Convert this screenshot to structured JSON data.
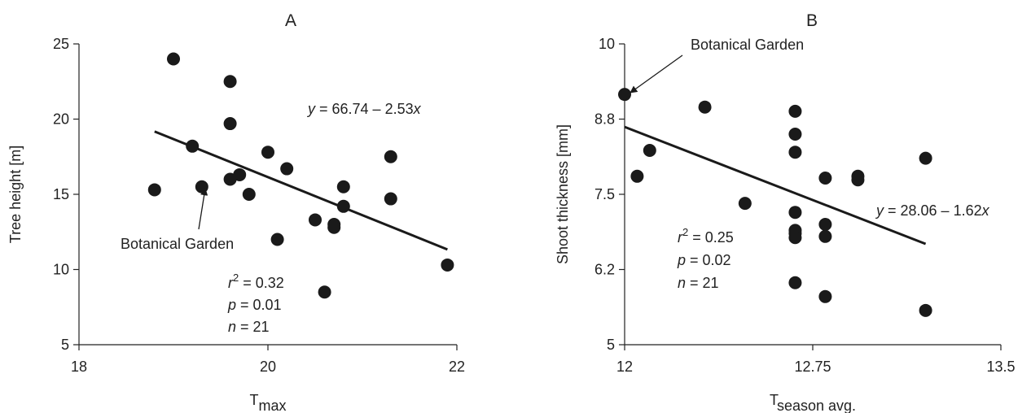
{
  "chart_data": [
    {
      "type": "scatter",
      "title": "A",
      "xlabel": "T",
      "xlabel_sub": "max",
      "ylabel": "Tree height [m]",
      "xlim": [
        18,
        22
      ],
      "ylim": [
        5,
        25
      ],
      "xticks": [
        18,
        20,
        22
      ],
      "yticks": [
        5,
        10,
        15,
        20,
        25
      ],
      "xtick_labels": [
        "18",
        "20",
        "22"
      ],
      "ytick_labels": [
        "5",
        "10",
        "15",
        "20",
        "25"
      ],
      "points": [
        {
          "x": 18.8,
          "y": 15.3
        },
        {
          "x": 19.0,
          "y": 24.0
        },
        {
          "x": 19.2,
          "y": 18.2
        },
        {
          "x": 19.3,
          "y": 15.5
        },
        {
          "x": 19.6,
          "y": 22.5
        },
        {
          "x": 19.6,
          "y": 19.7
        },
        {
          "x": 19.6,
          "y": 16.0
        },
        {
          "x": 19.7,
          "y": 16.3
        },
        {
          "x": 19.8,
          "y": 15.0
        },
        {
          "x": 20.0,
          "y": 17.8
        },
        {
          "x": 20.1,
          "y": 12.0
        },
        {
          "x": 20.2,
          "y": 16.7
        },
        {
          "x": 20.5,
          "y": 13.3
        },
        {
          "x": 20.6,
          "y": 8.5
        },
        {
          "x": 20.7,
          "y": 13.0
        },
        {
          "x": 20.7,
          "y": 12.8
        },
        {
          "x": 20.8,
          "y": 15.5
        },
        {
          "x": 20.8,
          "y": 14.2
        },
        {
          "x": 21.3,
          "y": 17.5
        },
        {
          "x": 21.3,
          "y": 14.7
        },
        {
          "x": 21.9,
          "y": 10.3
        }
      ],
      "regression": {
        "intercept": 66.74,
        "slope": -2.53,
        "x_range": [
          18.8,
          21.9
        ]
      },
      "equation": {
        "prefix": "y",
        "text": " = 66.74 – 2.53",
        "var": "x"
      },
      "stats": [
        {
          "var": "r",
          "sup": "2",
          "text": " = 0.32"
        },
        {
          "var": "p",
          "sup": "",
          "text": " = 0.01"
        },
        {
          "var": "n",
          "sup": "",
          "text": " = 21"
        }
      ],
      "annotation": {
        "text": "Botanical Garden",
        "point_index": 3
      }
    },
    {
      "type": "scatter",
      "title": "B",
      "xlabel": "T",
      "xlabel_sub": "season avg.",
      "ylabel": "Shoot thickness [mm]",
      "xlim": [
        12,
        13.5
      ],
      "ylim": [
        5,
        10
      ],
      "xticks": [
        12,
        12.75,
        13.5
      ],
      "yticks": [
        5,
        6.25,
        7.5,
        8.75,
        10
      ],
      "xtick_labels": [
        "12",
        "12.75",
        "13.5"
      ],
      "ytick_labels": [
        "5",
        "6.2",
        "7.5",
        "8.8",
        "10"
      ],
      "points": [
        {
          "x": 12.0,
          "y": 9.16
        },
        {
          "x": 12.05,
          "y": 7.8
        },
        {
          "x": 12.1,
          "y": 8.23
        },
        {
          "x": 12.32,
          "y": 8.95
        },
        {
          "x": 12.48,
          "y": 7.35
        },
        {
          "x": 12.68,
          "y": 8.88
        },
        {
          "x": 12.68,
          "y": 8.5
        },
        {
          "x": 12.68,
          "y": 8.2
        },
        {
          "x": 12.68,
          "y": 7.2
        },
        {
          "x": 12.68,
          "y": 6.9
        },
        {
          "x": 12.68,
          "y": 6.85
        },
        {
          "x": 12.68,
          "y": 6.78
        },
        {
          "x": 12.68,
          "y": 6.03
        },
        {
          "x": 12.8,
          "y": 7.77
        },
        {
          "x": 12.8,
          "y": 7.0
        },
        {
          "x": 12.8,
          "y": 6.8
        },
        {
          "x": 12.8,
          "y": 5.8
        },
        {
          "x": 12.93,
          "y": 7.8
        },
        {
          "x": 12.93,
          "y": 7.74
        },
        {
          "x": 13.2,
          "y": 8.1
        },
        {
          "x": 13.2,
          "y": 5.57
        }
      ],
      "regression": {
        "intercept": 28.06,
        "slope": -1.62,
        "x_range": [
          12.0,
          13.2
        ]
      },
      "equation": {
        "prefix": "y",
        "text": " = 28.06 – 1.62",
        "var": "x"
      },
      "stats": [
        {
          "var": "r",
          "sup": "2",
          "text": " = 0.25"
        },
        {
          "var": "p",
          "sup": "",
          "text": " = 0.02"
        },
        {
          "var": "n",
          "sup": "",
          "text": " = 21"
        }
      ],
      "annotation": {
        "text": "Botanical Garden",
        "point_index": 0
      }
    }
  ]
}
